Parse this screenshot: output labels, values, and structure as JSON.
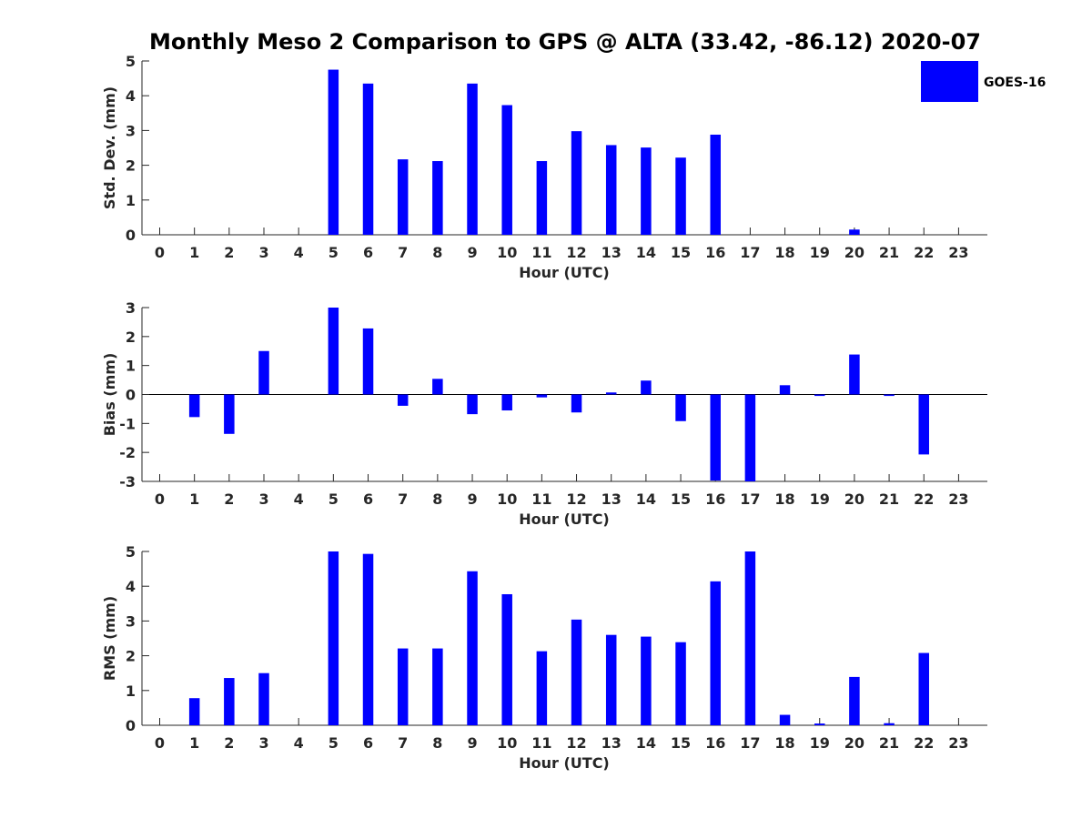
{
  "title": "Monthly Meso 2 Comparison to GPS @ ALTA (33.42, -86.12) 2020-07",
  "legend": {
    "label": "GOES-16",
    "color": "#0000ff",
    "placement": "top-right"
  },
  "colors": {
    "bar": "#0000ff",
    "axis": "#262626"
  },
  "chart_data": [
    {
      "type": "bar",
      "xlabel": "Hour (UTC)",
      "ylabel": "Std. Dev. (mm)",
      "ylim": [
        0,
        5
      ],
      "yticks": [
        0,
        1,
        2,
        3,
        4,
        5
      ],
      "categories": [
        "0",
        "1",
        "2",
        "3",
        "4",
        "5",
        "6",
        "7",
        "8",
        "9",
        "10",
        "11",
        "12",
        "13",
        "14",
        "15",
        "16",
        "17",
        "18",
        "19",
        "20",
        "21",
        "22",
        "23"
      ],
      "series": [
        {
          "name": "GOES-16",
          "values": [
            0,
            0,
            0,
            0,
            0,
            4.75,
            4.35,
            2.17,
            2.12,
            4.35,
            3.73,
            2.12,
            2.98,
            2.58,
            2.51,
            2.22,
            2.88,
            0,
            0,
            0,
            0.15,
            0,
            0,
            0
          ]
        }
      ]
    },
    {
      "type": "bar",
      "xlabel": "Hour (UTC)",
      "ylabel": "Bias (mm)",
      "ylim": [
        -3,
        3
      ],
      "yticks": [
        -3,
        -2,
        -1,
        0,
        1,
        2,
        3
      ],
      "categories": [
        "0",
        "1",
        "2",
        "3",
        "4",
        "5",
        "6",
        "7",
        "8",
        "9",
        "10",
        "11",
        "12",
        "13",
        "14",
        "15",
        "16",
        "17",
        "18",
        "19",
        "20",
        "21",
        "22",
        "23"
      ],
      "series": [
        {
          "name": "GOES-16",
          "values": [
            0,
            -0.78,
            -1.36,
            1.5,
            0,
            3.0,
            2.28,
            -0.39,
            0.54,
            -0.68,
            -0.55,
            -0.1,
            -0.62,
            0.07,
            0.48,
            -0.92,
            -2.97,
            -3.0,
            0.32,
            -0.05,
            1.38,
            -0.05,
            -2.07,
            0
          ]
        }
      ]
    },
    {
      "type": "bar",
      "xlabel": "Hour (UTC)",
      "ylabel": "RMS (mm)",
      "ylim": [
        0,
        5
      ],
      "yticks": [
        0,
        1,
        2,
        3,
        4,
        5
      ],
      "categories": [
        "0",
        "1",
        "2",
        "3",
        "4",
        "5",
        "6",
        "7",
        "8",
        "9",
        "10",
        "11",
        "12",
        "13",
        "14",
        "15",
        "16",
        "17",
        "18",
        "19",
        "20",
        "21",
        "22",
        "23"
      ],
      "series": [
        {
          "name": "GOES-16",
          "values": [
            0,
            0.78,
            1.36,
            1.5,
            0,
            5.0,
            4.93,
            2.21,
            2.21,
            4.43,
            3.77,
            2.13,
            3.04,
            2.6,
            2.55,
            2.39,
            4.14,
            5.0,
            0.3,
            0.05,
            1.39,
            0.06,
            2.08,
            0
          ]
        }
      ]
    }
  ]
}
